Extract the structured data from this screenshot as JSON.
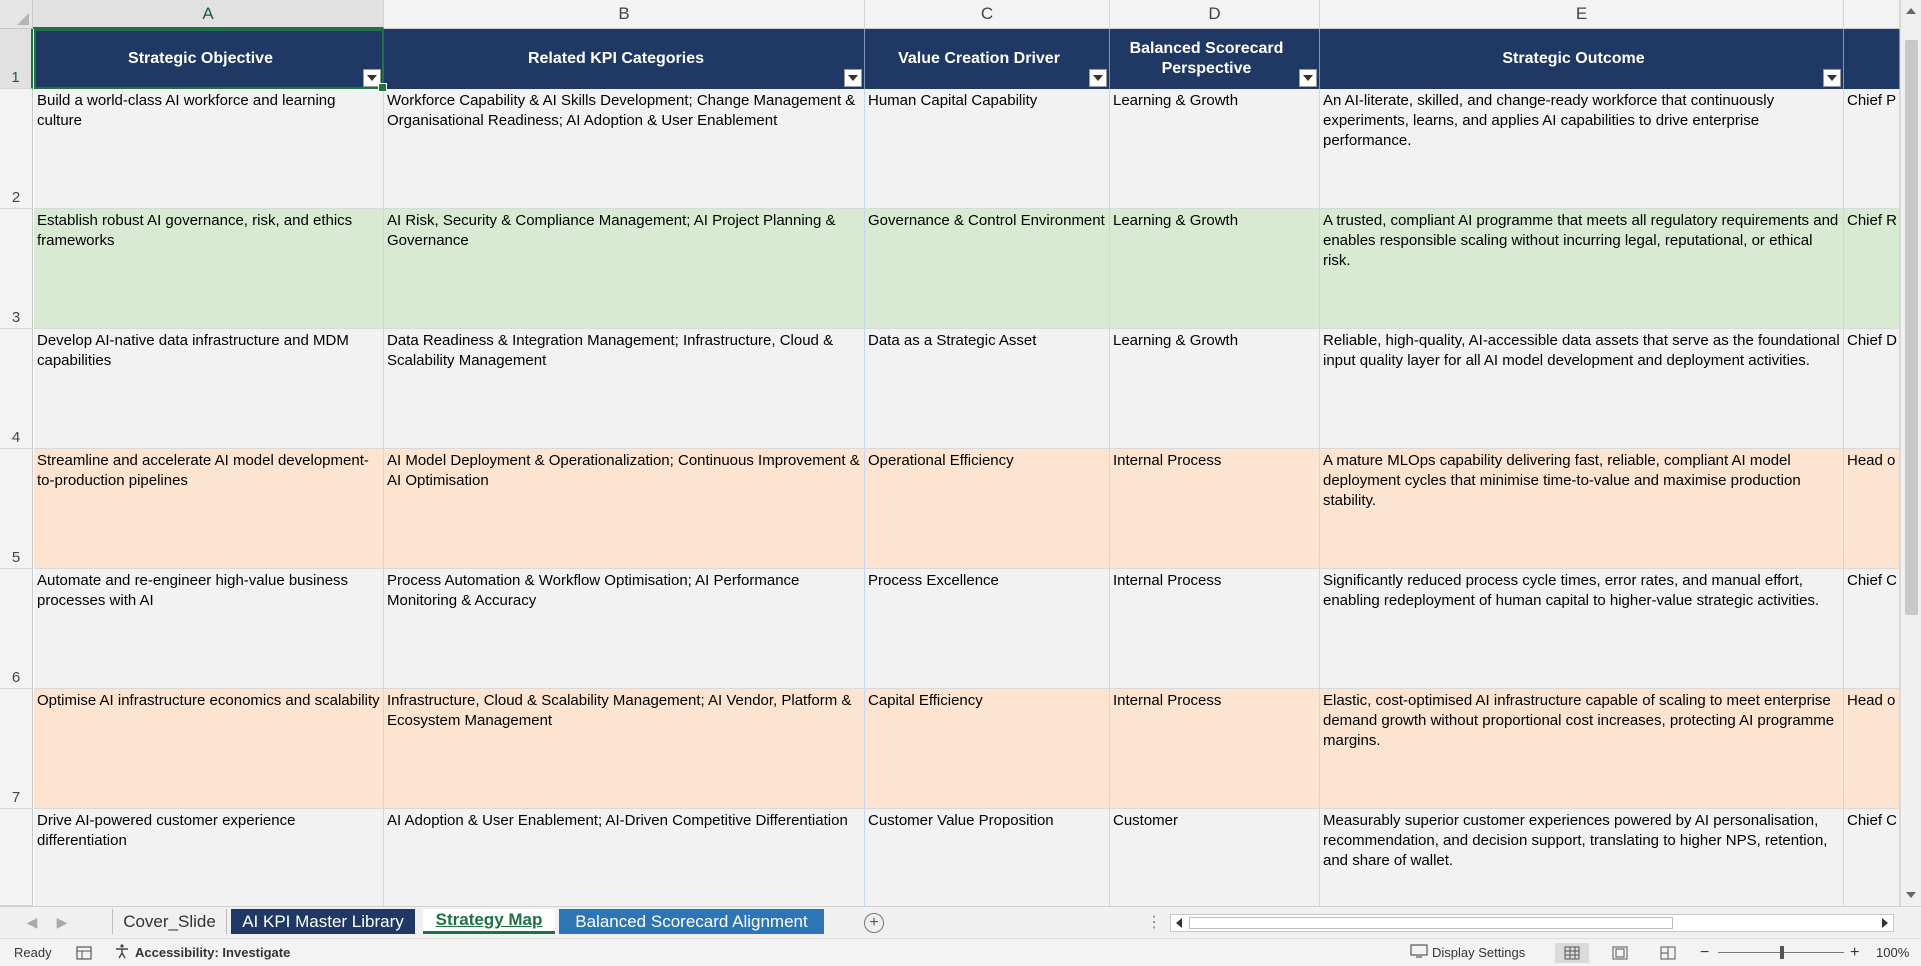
{
  "columns": [
    "A",
    "B",
    "C",
    "D",
    "E"
  ],
  "row_numbers": [
    "1",
    "2",
    "3",
    "4",
    "5",
    "6",
    "7"
  ],
  "headers": [
    "Strategic Objective",
    "Related KPI Categories",
    "Value Creation Driver",
    "Balanced Scorecard Perspective",
    "Strategic Outcome"
  ],
  "rows": [
    {
      "objective": "Build a world-class AI workforce and learning culture",
      "kpi": "Workforce Capability & AI Skills Development; Change Management & Organisational Readiness; AI Adoption & User Enablement",
      "driver": "Human Capital Capability",
      "perspective": "Learning & Growth",
      "outcome": "An AI-literate, skilled, and change-ready workforce that continuously experiments, learns, and applies AI capabilities to drive enterprise performance.",
      "owner": "Chief P",
      "fill": "gray"
    },
    {
      "objective": "Establish robust AI governance, risk, and ethics frameworks",
      "kpi": "AI Risk, Security & Compliance Management; AI Project Planning & Governance",
      "driver": "Governance & Control Environment",
      "perspective": "Learning & Growth",
      "outcome": "A trusted, compliant AI programme that meets all regulatory requirements and enables responsible scaling without incurring legal, reputational, or ethical risk.",
      "owner": "Chief R",
      "fill": "green"
    },
    {
      "objective": "Develop AI-native data infrastructure and MDM capabilities",
      "kpi": "Data Readiness & Integration Management; Infrastructure, Cloud & Scalability Management",
      "driver": "Data as a Strategic Asset",
      "perspective": "Learning & Growth",
      "outcome": "Reliable, high-quality, AI-accessible data assets that serve as the foundational input quality layer for all AI model development and deployment activities.",
      "owner": "Chief D",
      "fill": "gray"
    },
    {
      "objective": "Streamline and accelerate AI model development-to-production pipelines",
      "kpi": "AI Model Deployment & Operationalization; Continuous Improvement & AI Optimisation",
      "driver": "Operational Efficiency",
      "perspective": "Internal Process",
      "outcome": "A mature MLOps capability delivering fast, reliable, compliant AI model deployment cycles that minimise time-to-value and maximise production stability.",
      "owner": "Head o",
      "fill": "orange"
    },
    {
      "objective": "Automate and re-engineer high-value business processes with AI",
      "kpi": "Process Automation & Workflow Optimisation; AI Performance Monitoring & Accuracy",
      "driver": "Process Excellence",
      "perspective": "Internal Process",
      "outcome": "Significantly reduced process cycle times, error rates, and manual effort, enabling redeployment of human capital to higher-value strategic activities.",
      "owner": "Chief C",
      "fill": "gray"
    },
    {
      "objective": "Optimise AI infrastructure economics and scalability",
      "kpi": "Infrastructure, Cloud & Scalability Management; AI Vendor, Platform & Ecosystem Management",
      "driver": "Capital Efficiency",
      "perspective": "Internal Process",
      "outcome": "Elastic, cost-optimised AI infrastructure capable of scaling to meet enterprise demand growth without proportional cost increases, protecting AI programme margins.",
      "owner": "Head o",
      "fill": "orange"
    },
    {
      "objective": "Drive AI-powered customer experience differentiation",
      "kpi": "AI Adoption & User Enablement; AI-Driven Competitive Differentiation",
      "driver": "Customer Value Proposition",
      "perspective": "Customer",
      "outcome": "Measurably superior customer experiences powered by AI personalisation, recommendation, and decision support, translating to higher NPS, retention, and share of wallet.",
      "owner": "Chief C",
      "fill": "gray"
    }
  ],
  "sheet_tabs": [
    "Cover_Slide",
    "AI KPI Master Library",
    "Strategy Map",
    "Balanced Scorecard Alignment"
  ],
  "active_tab": "Strategy Map",
  "status": {
    "ready": "Ready",
    "accessibility": "Accessibility: Investigate",
    "display_settings": "Display Settings",
    "zoom": "100%"
  },
  "colors": {
    "header_fill": "#1f3864",
    "row_gray": "#f2f2f2",
    "row_green": "#d9ead3",
    "row_orange": "#fce4d1",
    "accent": "#1f7244"
  }
}
